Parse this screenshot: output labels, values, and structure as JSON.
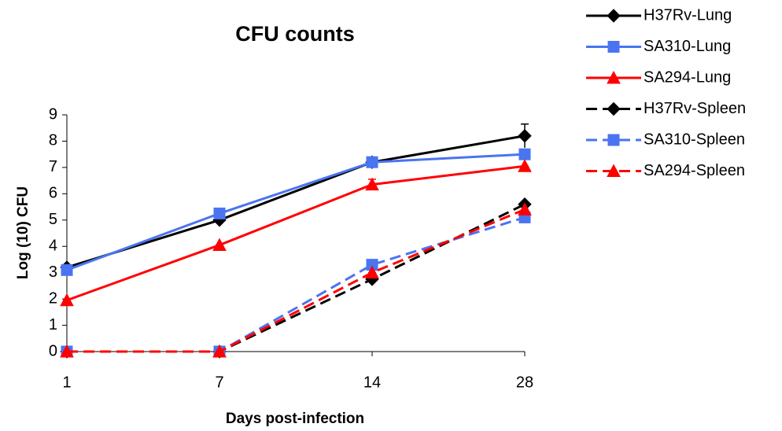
{
  "chart_data": {
    "type": "line",
    "title": "CFU counts",
    "x_label": "Days post-infection",
    "y_label": "Log (10) CFU",
    "categories": [
      "1",
      "7",
      "14",
      "28"
    ],
    "ylim": [
      0,
      9
    ],
    "yticks": [
      0,
      1,
      2,
      3,
      4,
      5,
      6,
      7,
      8,
      9
    ],
    "legend": "right",
    "series": [
      {
        "name": "H37Rv-Lung",
        "color": "#000000",
        "marker": "diamond",
        "dash": false,
        "values": [
          3.2,
          5.0,
          7.2,
          8.2
        ],
        "errors": [
          0,
          0,
          0,
          0.45
        ]
      },
      {
        "name": "SA310-Lung",
        "color": "#4a74f0",
        "marker": "square",
        "dash": false,
        "values": [
          3.1,
          5.25,
          7.2,
          7.5
        ],
        "errors": [
          0,
          0,
          0,
          0
        ]
      },
      {
        "name": "SA294-Lung",
        "color": "#ff0000",
        "marker": "triangle",
        "dash": false,
        "values": [
          1.95,
          4.05,
          6.35,
          7.05
        ],
        "errors": [
          0,
          0,
          0.2,
          0
        ]
      },
      {
        "name": "H37Rv-Spleen",
        "color": "#000000",
        "marker": "diamond",
        "dash": true,
        "values": [
          0,
          0,
          2.75,
          5.6
        ],
        "errors": [
          0,
          0,
          0,
          0
        ]
      },
      {
        "name": "SA310-Spleen",
        "color": "#4a74f0",
        "marker": "square",
        "dash": true,
        "values": [
          0,
          0,
          3.3,
          5.1
        ],
        "errors": [
          0,
          0,
          0,
          0
        ]
      },
      {
        "name": "SA294-Spleen",
        "color": "#ff0000",
        "marker": "triangle",
        "dash": true,
        "values": [
          0,
          0,
          3.0,
          5.4
        ],
        "errors": [
          0,
          0,
          0,
          0
        ]
      }
    ]
  }
}
